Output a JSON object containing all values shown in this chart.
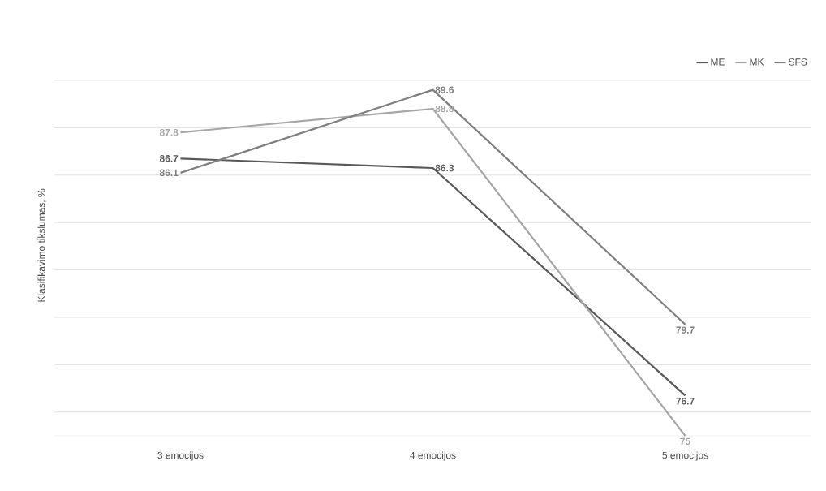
{
  "chart_data": {
    "type": "line",
    "ylabel": "Klasifikavimo tikslumas, %",
    "categories": [
      "3 emocijos",
      "4 emocijos",
      "5 emocijos"
    ],
    "series": [
      {
        "name": "ME",
        "color": "#595959",
        "values": [
          86.7,
          86.3,
          76.7
        ]
      },
      {
        "name": "MK",
        "color": "#a6a6a6",
        "values": [
          87.8,
          88.8,
          75
        ]
      },
      {
        "name": "SFS",
        "color": "#7f7f7f",
        "values": [
          86.1,
          89.6,
          79.7
        ]
      }
    ],
    "tick_labels": "x",
    "grid": "y",
    "legend": "top right",
    "marker": "none",
    "line_style": "solid",
    "data_labels": true
  }
}
